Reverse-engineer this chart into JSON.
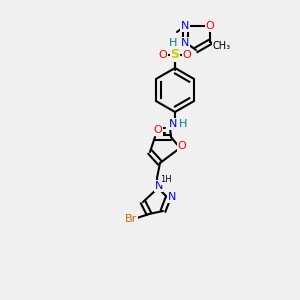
{
  "bg_color": "#f0f0f0",
  "atom_colors": {
    "C": "#000000",
    "N": "#0000ff",
    "O": "#ff0000",
    "S": "#cccc00",
    "Br": "#cc6600",
    "H": "#008080"
  },
  "figsize": [
    3.0,
    3.0
  ],
  "dpi": 100
}
